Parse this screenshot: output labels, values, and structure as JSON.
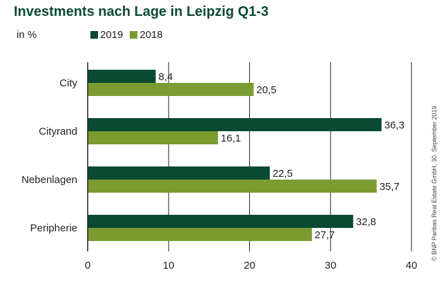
{
  "chart_data": {
    "type": "bar",
    "orientation": "horizontal",
    "title": "Investments nach Lage in Leipzig Q1-3",
    "unit_label": "in %",
    "categories": [
      "City",
      "Cityrand",
      "Nebenlagen",
      "Peripherie"
    ],
    "series": [
      {
        "name": "2019",
        "values": [
          8.4,
          36.3,
          22.5,
          32.8
        ],
        "labels": [
          "8,4",
          "36,3",
          "22,5",
          "32,8"
        ],
        "color": "#0b4a32"
      },
      {
        "name": "2018",
        "values": [
          20.5,
          16.1,
          35.7,
          27.7
        ],
        "labels": [
          "20,5",
          "16,1",
          "35,7",
          "27,7"
        ],
        "color": "#7a9c30"
      }
    ],
    "xlim": [
      0,
      40
    ],
    "xticks": [
      "0",
      "10",
      "20",
      "30",
      "40"
    ],
    "xtick_values": [
      0,
      10,
      20,
      30,
      40
    ],
    "grid": "vertical",
    "legend": "top",
    "credit": "© BNP Paribas Real Estate GmbH, 30. September 2019"
  }
}
